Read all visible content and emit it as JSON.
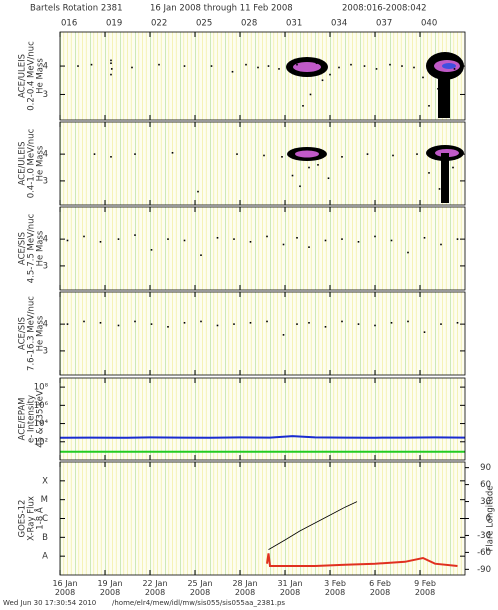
{
  "header": {
    "title": [
      "Bartels Rotation 2381",
      "16 Jan 2008 through 11 Feb 2008",
      "2008:016-2008:042"
    ]
  },
  "footer": [
    "Wed Jun 30 17:30:54 2010",
    "/home/elr4/mew/idl/mw/sis055/sis055aa_2381.ps"
  ],
  "chart_data": [
    {
      "type": "scatter",
      "ylabel": [
        "ACE/ULEIS",
        "0.2-0.4 MeV/nuc",
        "He Mass"
      ],
      "xlim": [
        16,
        43
      ],
      "ylim": [
        2.1,
        5.2
      ],
      "yticks": [
        3,
        4
      ],
      "doy_ticks": [
        {
          "value": 16,
          "label": "016"
        },
        {
          "value": 19,
          "label": "019"
        },
        {
          "value": 22,
          "label": "022"
        },
        {
          "value": 25,
          "label": "025"
        },
        {
          "value": 28,
          "label": "028"
        },
        {
          "value": 31,
          "label": "031"
        },
        {
          "value": 34,
          "label": "034"
        },
        {
          "value": 37,
          "label": "037"
        },
        {
          "value": 40,
          "label": "040"
        }
      ],
      "series": [
        {
          "color": "#000000",
          "x": [
            17.2,
            18.1,
            19.4,
            19.4,
            19.45,
            19.4,
            20.8,
            22.6,
            24.3,
            26.1,
            27.5,
            28.4,
            29.2,
            29.9,
            30.6,
            31.2,
            31.8,
            32.2,
            32.7,
            33.1,
            33.5,
            34.0,
            34.6,
            35.4,
            36.3,
            37.1,
            38.0,
            38.8,
            39.6,
            40.2,
            40.6,
            41.2,
            41.8,
            42.3,
            42.7
          ],
          "values": [
            4.0,
            4.05,
            4.1,
            3.7,
            3.9,
            4.2,
            3.95,
            4.05,
            4.0,
            4.0,
            3.8,
            4.05,
            3.95,
            4.0,
            3.9,
            3.9,
            4.05,
            2.6,
            3.0,
            4.1,
            3.5,
            3.7,
            3.95,
            4.05,
            4.0,
            3.9,
            4.05,
            4.0,
            3.95,
            3.6,
            2.6,
            3.2,
            2.4,
            3.9,
            4.05
          ]
        }
      ]
    },
    {
      "type": "scatter",
      "ylabel": [
        "ACE/ULEIS",
        "0.4-1.0 MeV/nuc",
        "He Mass"
      ],
      "xlim": [
        16,
        43
      ],
      "ylim": [
        2.1,
        5.2
      ],
      "yticks": [
        3,
        4
      ],
      "series": [
        {
          "color": "#000000",
          "x": [
            18.3,
            19.4,
            21.0,
            23.5,
            25.2,
            27.8,
            29.6,
            30.8,
            31.5,
            32.0,
            32.6,
            33.2,
            33.9,
            34.8,
            36.5,
            38.2,
            39.8,
            40.6,
            41.3,
            42.2
          ],
          "values": [
            4.0,
            3.9,
            4.0,
            4.05,
            2.6,
            4.0,
            3.95,
            3.9,
            3.2,
            2.8,
            3.5,
            3.6,
            3.1,
            3.9,
            4.0,
            3.95,
            4.0,
            3.3,
            2.7,
            3.5
          ]
        }
      ]
    },
    {
      "type": "scatter",
      "ylabel": [
        "ACE/SIS",
        "4.5-7.5 MeV/nuc",
        "He Mass"
      ],
      "xlim": [
        16,
        43
      ],
      "ylim": [
        2.1,
        5.2
      ],
      "yticks": [
        3,
        4
      ],
      "series": [
        {
          "color": "#000000",
          "x": [
            16.5,
            17.6,
            18.7,
            19.9,
            21.0,
            22.1,
            23.2,
            24.3,
            25.4,
            26.5,
            27.6,
            28.7,
            29.8,
            30.9,
            31.8,
            32.6,
            33.7,
            34.8,
            35.9,
            37.0,
            38.1,
            39.2,
            40.3,
            41.4,
            42.5
          ],
          "values": [
            3.95,
            4.1,
            3.9,
            4.0,
            4.15,
            3.6,
            4.0,
            3.95,
            3.4,
            4.05,
            4.0,
            3.9,
            4.1,
            3.8,
            4.05,
            3.7,
            3.95,
            4.0,
            3.9,
            4.1,
            3.95,
            3.5,
            4.05,
            3.8,
            4.0
          ]
        }
      ]
    },
    {
      "type": "scatter",
      "ylabel": [
        "ACE/SIS",
        "7.6-16.3 MeV/nuc",
        "He Mass"
      ],
      "xlim": [
        16,
        43
      ],
      "ylim": [
        2.1,
        5.2
      ],
      "yticks": [
        3,
        4
      ],
      "series": [
        {
          "color": "#000000",
          "x": [
            16.5,
            17.6,
            18.7,
            19.9,
            21.0,
            22.1,
            23.2,
            24.3,
            25.4,
            26.5,
            27.6,
            28.7,
            29.8,
            30.9,
            31.8,
            32.6,
            33.7,
            34.8,
            35.9,
            37.0,
            38.1,
            39.2,
            40.3,
            41.4,
            42.5
          ],
          "values": [
            4.0,
            4.1,
            4.05,
            3.95,
            4.1,
            4.0,
            3.9,
            4.05,
            4.1,
            3.95,
            4.0,
            4.05,
            4.1,
            3.6,
            4.0,
            4.05,
            3.9,
            4.1,
            4.0,
            3.95,
            4.05,
            4.1,
            3.7,
            4.0,
            4.05
          ]
        }
      ]
    },
    {
      "type": "line",
      "ylabel": [
        "ACE/EPAM",
        "e- Intensity",
        "45 & 235 keV"
      ],
      "log_y": true,
      "xlim": [
        16,
        43
      ],
      "ylim": [
        1,
        1000000000
      ],
      "yticks": [
        {
          "value": 100,
          "label": "10²"
        },
        {
          "value": 10000,
          "label": "10⁴"
        },
        {
          "value": 1000000,
          "label": "10⁶"
        },
        {
          "value": 100000000,
          "label": "10⁸"
        }
      ],
      "series": [
        {
          "color": "#1a2bd0",
          "x": [
            16,
            18,
            20,
            22,
            24,
            26,
            28,
            30,
            31.5,
            33,
            35,
            37,
            39,
            41,
            43
          ],
          "values": [
            280,
            290,
            270,
            300,
            290,
            280,
            300,
            290,
            420,
            300,
            290,
            280,
            290,
            300,
            290
          ]
        },
        {
          "color": "#22cc22",
          "x": [
            16,
            18,
            20,
            22,
            24,
            26,
            28,
            30,
            31.5,
            33,
            35,
            37,
            39,
            41,
            43
          ],
          "values": [
            8,
            8,
            8,
            8,
            8,
            8,
            8,
            8,
            8,
            8,
            8,
            8,
            8,
            8,
            8
          ]
        }
      ]
    },
    {
      "type": "line",
      "ylabel": [
        "GOES-12",
        "X-Ray Flux",
        "1-8 Å"
      ],
      "y2label": "Flare Longitude",
      "log_y": true,
      "xlim": [
        16,
        43
      ],
      "ylim": [
        1e-09,
        0.001
      ],
      "yticks": [
        {
          "value": 1e-08,
          "label": "A"
        },
        {
          "value": 1e-07,
          "label": "B"
        },
        {
          "value": 1e-06,
          "label": "C"
        },
        {
          "value": 1e-05,
          "label": "M"
        },
        {
          "value": 0.0001,
          "label": "X"
        }
      ],
      "y2lim": [
        -100,
        100
      ],
      "y2ticks": [
        -90,
        -60,
        -30,
        0,
        30,
        60,
        90
      ],
      "xticks": [
        {
          "value": 16,
          "label": "16 Jan 2008"
        },
        {
          "value": 19,
          "label": "19 Jan 2008"
        },
        {
          "value": 22,
          "label": "22 Jan 2008"
        },
        {
          "value": 25,
          "label": "25 Jan 2008"
        },
        {
          "value": 28,
          "label": "28 Jan 2008"
        },
        {
          "value": 31,
          "label": "31 Jan 2008"
        },
        {
          "value": 34,
          "label": "3 Feb 2008"
        },
        {
          "value": 37,
          "label": "6 Feb 2008"
        },
        {
          "value": 40,
          "label": "9 Feb 2008"
        }
      ],
      "series": [
        {
          "color": "#000000",
          "axis": "y2",
          "x": [
            29.9,
            31,
            32,
            33,
            34,
            35,
            35.8
          ],
          "values": [
            -55,
            -38,
            -22,
            -8,
            6,
            20,
            30
          ]
        },
        {
          "color": "#e03020",
          "x": [
            29.8,
            29.9,
            30.0,
            31,
            33,
            35,
            37,
            39,
            40.2,
            41,
            42.5
          ],
          "values": [
            4e-09,
            1.4e-08,
            3e-09,
            3e-09,
            3e-09,
            3.5e-09,
            4e-09,
            5e-09,
            8e-09,
            4e-09,
            3e-09
          ]
        }
      ]
    }
  ]
}
